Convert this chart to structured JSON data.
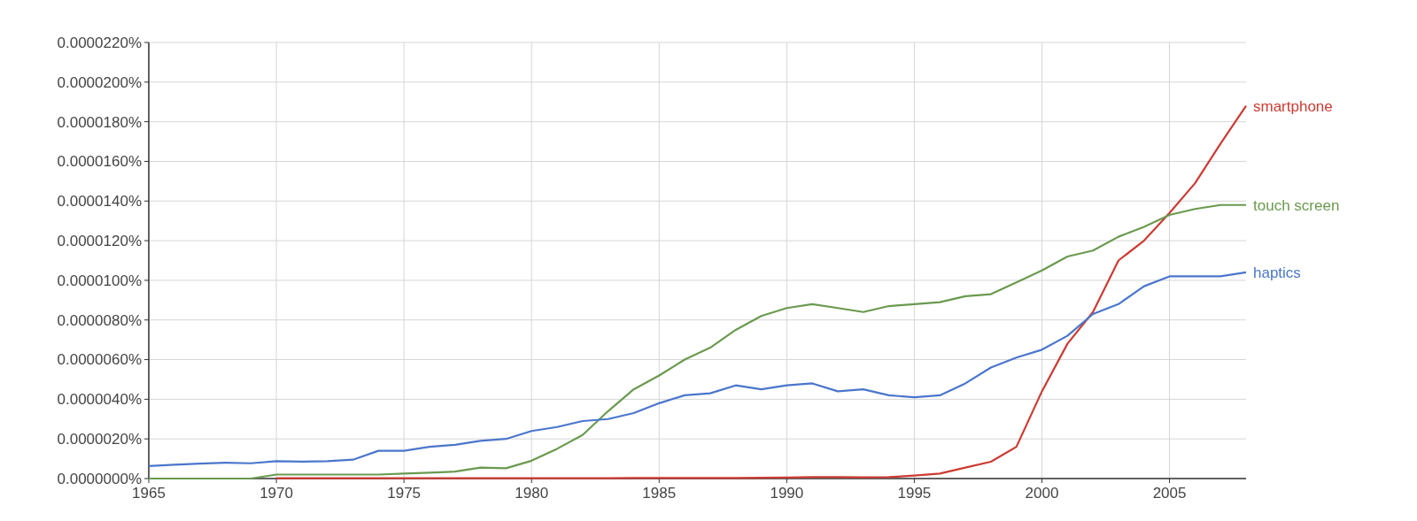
{
  "chart_data": {
    "type": "line",
    "x": [
      1965,
      1966,
      1967,
      1968,
      1969,
      1970,
      1971,
      1972,
      1973,
      1974,
      1975,
      1976,
      1977,
      1978,
      1979,
      1980,
      1981,
      1982,
      1983,
      1984,
      1985,
      1986,
      1987,
      1988,
      1989,
      1990,
      1991,
      1992,
      1993,
      1994,
      1995,
      1996,
      1997,
      1998,
      1999,
      2000,
      2001,
      2002,
      2003,
      2004,
      2005,
      2006,
      2007,
      2008
    ],
    "series": [
      {
        "name": "smartphone",
        "color": "#cc3b33",
        "values": [
          null,
          null,
          null,
          null,
          null,
          2e-08,
          2e-08,
          2e-08,
          2e-08,
          2e-08,
          2e-08,
          2e-08,
          2e-08,
          2e-08,
          2e-08,
          2e-08,
          2e-08,
          2e-08,
          2e-08,
          3e-08,
          3e-08,
          3e-08,
          3e-08,
          3e-08,
          4e-08,
          5e-08,
          7e-08,
          7e-08,
          6e-08,
          7e-08,
          1.5e-07,
          2.5e-07,
          5.5e-07,
          8.5e-07,
          1.6e-06,
          4.4e-06,
          6.8e-06,
          8.4e-06,
          1.1e-05,
          1.2e-05,
          1.34e-05,
          1.49e-05,
          1.69e-05,
          1.88e-05
        ]
      },
      {
        "name": "touch screen",
        "color": "#6a9a4f",
        "values": [
          0,
          0,
          0,
          0,
          0,
          2e-07,
          2e-07,
          2e-07,
          2e-07,
          2e-07,
          2.5e-07,
          3e-07,
          3.5e-07,
          5.5e-07,
          5.2e-07,
          9e-07,
          1.5e-06,
          2.2e-06,
          3.4e-06,
          4.5e-06,
          5.2e-06,
          6e-06,
          6.6e-06,
          7.5e-06,
          8.2e-06,
          8.6e-06,
          8.8e-06,
          8.6e-06,
          8.4e-06,
          8.7e-06,
          8.8e-06,
          8.9e-06,
          9.2e-06,
          9.3e-06,
          9.9e-06,
          1.05e-05,
          1.12e-05,
          1.15e-05,
          1.22e-05,
          1.27e-05,
          1.33e-05,
          1.36e-05,
          1.38e-05,
          1.38e-05
        ]
      },
      {
        "name": "haptics",
        "color": "#4a76cc",
        "values": [
          6.3e-07,
          7e-07,
          7.5e-07,
          8e-07,
          7.7e-07,
          8.8e-07,
          8.5e-07,
          8.8e-07,
          9.5e-07,
          1.4e-06,
          1.4e-06,
          1.6e-06,
          1.7e-06,
          1.9e-06,
          2e-06,
          2.4e-06,
          2.6e-06,
          2.9e-06,
          3e-06,
          3.3e-06,
          3.8e-06,
          4.2e-06,
          4.3e-06,
          4.7e-06,
          4.5e-06,
          4.7e-06,
          4.8e-06,
          4.4e-06,
          4.5e-06,
          4.2e-06,
          4.1e-06,
          4.2e-06,
          4.8e-06,
          5.6e-06,
          6.1e-06,
          6.5e-06,
          7.2e-06,
          8.3e-06,
          8.8e-06,
          9.7e-06,
          1.02e-05,
          1.02e-05,
          1.02e-05,
          1.04e-05
        ]
      }
    ],
    "xlim": [
      1965,
      2008
    ],
    "xticks": [
      1965,
      1970,
      1975,
      1980,
      1985,
      1990,
      1995,
      2000,
      2005
    ],
    "ylim": [
      0,
      2.2e-05
    ],
    "yticks": [
      {
        "value": 0,
        "label": "0.0000000%"
      },
      {
        "value": 2e-06,
        "label": "0.0000020%"
      },
      {
        "value": 4e-06,
        "label": "0.0000040%"
      },
      {
        "value": 6e-06,
        "label": "0.0000060%"
      },
      {
        "value": 8e-06,
        "label": "0.0000080%"
      },
      {
        "value": 1e-05,
        "label": "0.0000100%"
      },
      {
        "value": 1.2e-05,
        "label": "0.0000120%"
      },
      {
        "value": 1.4e-05,
        "label": "0.0000140%"
      },
      {
        "value": 1.6e-05,
        "label": "0.0000160%"
      },
      {
        "value": 1.8e-05,
        "label": "0.0000180%"
      },
      {
        "value": 2e-05,
        "label": "0.0000200%"
      },
      {
        "value": 2.2e-05,
        "label": "0.0000220%"
      }
    ],
    "grid": true,
    "legend": false,
    "marker": "none",
    "line_style": "solid"
  }
}
